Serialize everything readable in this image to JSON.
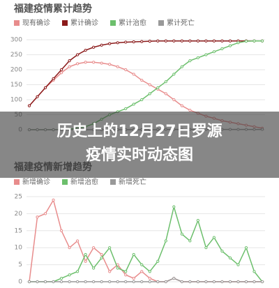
{
  "overlay_title": [
    "历史上的12月27日罗源",
    "疫情实时动态图"
  ],
  "chart_data": [
    {
      "type": "line",
      "title": "福建疫情累计趋势",
      "categories": [
        null,
        null,
        null,
        null,
        null,
        null,
        null,
        null,
        null,
        null,
        null,
        null,
        null,
        null,
        null,
        null,
        null,
        null,
        null,
        null,
        null,
        null,
        null,
        null,
        null,
        null,
        null,
        null,
        null,
        null
      ],
      "ylim": [
        0,
        300
      ],
      "yticks": [
        0,
        50,
        100,
        150,
        200,
        250,
        300
      ],
      "grid": true,
      "series": [
        {
          "name": "现有确诊",
          "color": "#e88c8c",
          "values": [
            80,
            110,
            140,
            165,
            190,
            210,
            220,
            225,
            225,
            222,
            218,
            210,
            200,
            185,
            165,
            150,
            135,
            120,
            100,
            80,
            65,
            55,
            45,
            38,
            30,
            25,
            20,
            15,
            10,
            5
          ]
        },
        {
          "name": "累计确诊",
          "color": "#8b1a1a",
          "values": [
            80,
            110,
            140,
            170,
            200,
            230,
            250,
            265,
            275,
            282,
            287,
            290,
            292,
            293,
            294,
            295,
            296,
            296,
            296,
            296,
            296,
            296,
            296,
            296,
            296,
            296,
            296,
            296,
            296,
            296
          ]
        },
        {
          "name": "累计治愈",
          "color": "#6cbf6c",
          "values": [
            0,
            0,
            0,
            0,
            1,
            2,
            5,
            10,
            20,
            35,
            50,
            60,
            70,
            85,
            100,
            120,
            140,
            160,
            185,
            210,
            230,
            240,
            250,
            260,
            270,
            280,
            290,
            295,
            296,
            296
          ]
        },
        {
          "name": "累计死亡",
          "color": "#999999",
          "values": [
            0,
            0,
            0,
            0,
            0,
            0,
            0,
            0,
            0,
            0,
            0,
            0,
            0,
            0,
            0,
            0,
            0,
            1,
            1,
            1,
            1,
            1,
            1,
            1,
            1,
            1,
            1,
            1,
            1,
            1
          ]
        }
      ]
    },
    {
      "type": "line",
      "title": "福建疫情新增趋势",
      "categories": [
        null,
        null,
        null,
        null,
        null,
        null,
        null,
        null,
        null,
        null,
        null,
        null,
        null,
        null,
        null,
        null,
        null,
        null,
        null,
        null,
        null,
        null,
        null,
        null,
        null,
        null,
        null,
        null,
        null,
        null
      ],
      "ylim": [
        0,
        25
      ],
      "yticks": [
        0,
        5,
        10,
        15,
        20,
        25
      ],
      "grid": true,
      "series": [
        {
          "name": "新增确诊",
          "color": "#e88c8c",
          "values": [
            0,
            19,
            20,
            24,
            15,
            10,
            12,
            6,
            10,
            8,
            3,
            5,
            2,
            1,
            3,
            1,
            0,
            0,
            1,
            0,
            0,
            0,
            0,
            0,
            0,
            0,
            0,
            0,
            0,
            0
          ]
        },
        {
          "name": "新增治愈",
          "color": "#6cbf6c",
          "values": [
            0,
            0,
            0,
            0,
            1,
            2,
            3,
            8,
            4,
            7,
            10,
            4,
            3,
            8,
            5,
            3,
            6,
            12,
            22,
            14,
            12,
            18,
            10,
            13,
            9,
            7,
            5,
            10,
            3,
            0
          ]
        },
        {
          "name": "新增死亡",
          "color": "#999999",
          "values": [
            0,
            0,
            0,
            0,
            0,
            0,
            0,
            0,
            0,
            0,
            0,
            0,
            0,
            0,
            0,
            0,
            0,
            0,
            1,
            0,
            0,
            0,
            0,
            0,
            0,
            0,
            0,
            0,
            0,
            0
          ]
        }
      ]
    }
  ]
}
